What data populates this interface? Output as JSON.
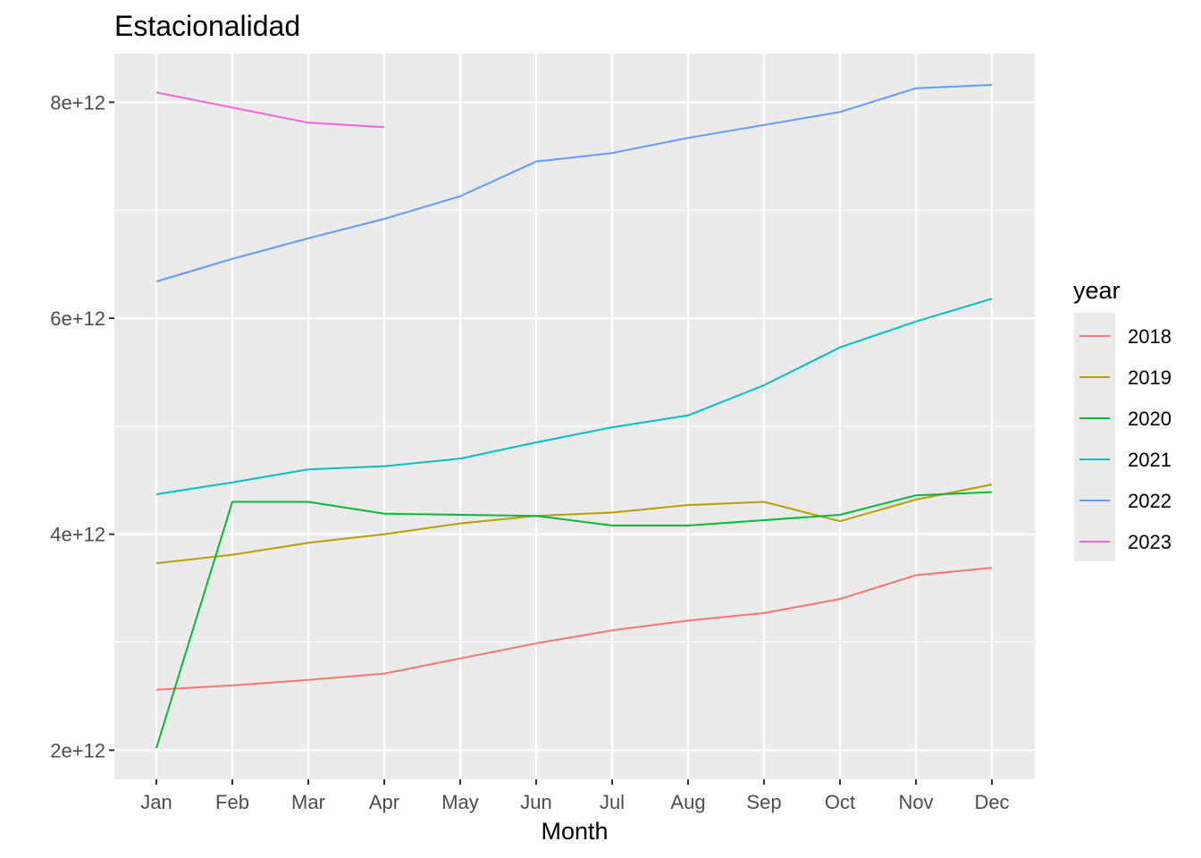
{
  "chart_data": {
    "type": "line",
    "title": "Estacionalidad",
    "xlabel": "Month",
    "ylabel": "",
    "categories": [
      "Jan",
      "Feb",
      "Mar",
      "Apr",
      "May",
      "Jun",
      "Jul",
      "Aug",
      "Sep",
      "Oct",
      "Nov",
      "Dec"
    ],
    "ylim": [
      1730000000000.0,
      8450000000000.0
    ],
    "yticks": [
      2000000000000.0,
      4000000000000.0,
      6000000000000.0,
      8000000000000.0
    ],
    "ytick_labels": [
      "2e+12",
      "4e+12",
      "6e+12",
      "8e+12"
    ],
    "minor_grid": [
      3000000000000.0,
      5000000000000.0,
      7000000000000.0
    ],
    "grid": true,
    "legend": {
      "title": "year",
      "position": "right"
    },
    "series": [
      {
        "name": "2018",
        "color": "#F8766D",
        "values": [
          2560000000000.0,
          2600000000000.0,
          2650000000000.0,
          2710000000000.0,
          2850000000000.0,
          2990000000000.0,
          3110000000000.0,
          3200000000000.0,
          3270000000000.0,
          3400000000000.0,
          3620000000000.0,
          3690000000000.0
        ]
      },
      {
        "name": "2019",
        "color": "#B79F00",
        "values": [
          3730000000000.0,
          3810000000000.0,
          3920000000000.0,
          4000000000000.0,
          4100000000000.0,
          4170000000000.0,
          4200000000000.0,
          4270000000000.0,
          4300000000000.0,
          4120000000000.0,
          4320000000000.0,
          4460000000000.0
        ]
      },
      {
        "name": "2020",
        "color": "#00BA38",
        "values": [
          2020000000000.0,
          4300000000000.0,
          4300000000000.0,
          4190000000000.0,
          4180000000000.0,
          4170000000000.0,
          4080000000000.0,
          4080000000000.0,
          4130000000000.0,
          4180000000000.0,
          4360000000000.0,
          4390000000000.0
        ]
      },
      {
        "name": "2021",
        "color": "#00BFC4",
        "values": [
          4370000000000.0,
          4480000000000.0,
          4600000000000.0,
          4630000000000.0,
          4700000000000.0,
          4850000000000.0,
          4990000000000.0,
          5100000000000.0,
          5380000000000.0,
          5730000000000.0,
          5970000000000.0,
          6180000000000.0
        ]
      },
      {
        "name": "2022",
        "color": "#619CFF",
        "values": [
          6340000000000.0,
          6550000000000.0,
          6740000000000.0,
          6920000000000.0,
          7130000000000.0,
          7450000000000.0,
          7530000000000.0,
          7670000000000.0,
          7790000000000.0,
          7910000000000.0,
          8130000000000.0,
          8160000000000.0
        ]
      },
      {
        "name": "2023",
        "color": "#F564E3",
        "values": [
          8090000000000.0,
          7950000000000.0,
          7810000000000.0,
          7770000000000.0,
          null,
          null,
          null,
          null,
          null,
          null,
          null,
          null
        ]
      }
    ]
  }
}
